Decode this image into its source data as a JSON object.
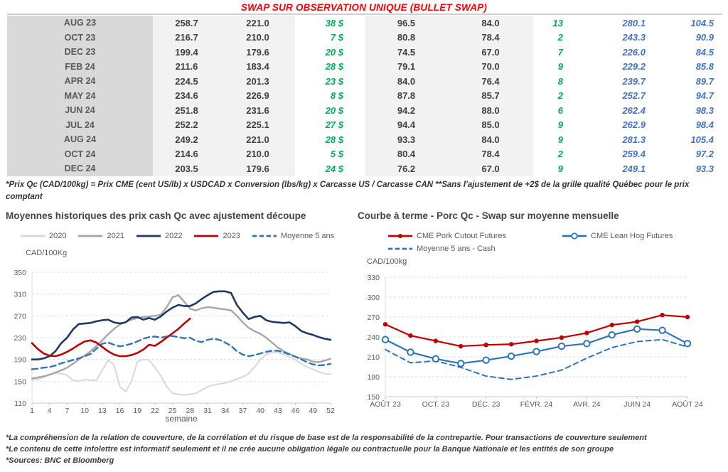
{
  "title": "SWAP SUR OBSERVATION UNIQUE (BULLET SWAP)",
  "table": {
    "rows": [
      [
        "AUG 23",
        "258.7",
        "221.0",
        "38 $",
        "96.5",
        "84.0",
        "13",
        "280.1",
        "104.5"
      ],
      [
        "OCT 23",
        "216.7",
        "210.0",
        "7 $",
        "80.8",
        "78.4",
        "2",
        "243.3",
        "90.9"
      ],
      [
        "DEC 23",
        "199.4",
        "179.6",
        "20 $",
        "74.5",
        "67.0",
        "7",
        "226.0",
        "84.5"
      ],
      [
        "FEB 24",
        "211.6",
        "183.4",
        "28 $",
        "79.1",
        "70.0",
        "9",
        "229.2",
        "85.8"
      ],
      [
        "APR 24",
        "224.5",
        "201.3",
        "23 $",
        "84.0",
        "76.4",
        "8",
        "239.7",
        "89.7"
      ],
      [
        "MAY 24",
        "234.6",
        "226.9",
        "8 $",
        "87.8",
        "85.7",
        "2",
        "252.7",
        "94.7"
      ],
      [
        "JUN 24",
        "251.8",
        "231.6",
        "20 $",
        "94.2",
        "88.0",
        "6",
        "262.4",
        "98.3"
      ],
      [
        "JUL 24",
        "252.2",
        "225.1",
        "27 $",
        "94.4",
        "85.0",
        "9",
        "262.9",
        "98.4"
      ],
      [
        "AUG 24",
        "249.2",
        "221.0",
        "28 $",
        "93.3",
        "84.0",
        "9",
        "281.3",
        "105.4"
      ],
      [
        "OCT 24",
        "214.6",
        "210.0",
        "5 $",
        "80.4",
        "78.4",
        "2",
        "259.4",
        "97.2"
      ],
      [
        "DEC 24",
        "203.5",
        "179.6",
        "24 $",
        "76.2",
        "67.0",
        "9",
        "249.1",
        "93.3"
      ]
    ]
  },
  "table_note": "*Prix Qc (CAD/100kg) = Prix CME (cent US/lb) x USDCAD x Conversion (lbs/kg) x Carcasse US / Carcasse CAN **Sans l'ajustement de +2$ de la grille qualité Québec pour le prix comptant",
  "colors": {
    "title_red": "#ff0000",
    "green": "#00b050",
    "blue_italic": "#4472c4",
    "navy": "#1f3864",
    "dark_red": "#c00000",
    "steel_blue": "#2e75b6",
    "gray_2021": "#a6a6a6",
    "light_gray_2020": "#d8d8d8"
  },
  "chart_data": [
    {
      "type": "line",
      "title": "Moyennes historiques des prix cash Qc avec ajustement découpe",
      "ylabel": "CAD/100Kg",
      "xlabel": "semaine",
      "ylim": [
        110,
        350
      ],
      "yticks": [
        110,
        150,
        190,
        230,
        270,
        310,
        350
      ],
      "xlim": [
        1,
        52
      ],
      "xticks": [
        {
          "v": 1,
          "label": "1"
        },
        {
          "v": 4,
          "label": "4"
        },
        {
          "v": 7,
          "label": "7"
        },
        {
          "v": 10,
          "label": "10"
        },
        {
          "v": 13,
          "label": "13"
        },
        {
          "v": 16,
          "label": "16"
        },
        {
          "v": 19,
          "label": "19"
        },
        {
          "v": 22,
          "label": "22"
        },
        {
          "v": 25,
          "label": "25"
        },
        {
          "v": 28,
          "label": "28"
        },
        {
          "v": 31,
          "label": "31"
        },
        {
          "v": 34,
          "label": "34"
        },
        {
          "v": 37,
          "label": "37"
        },
        {
          "v": 40,
          "label": "40"
        },
        {
          "v": 43,
          "label": "43"
        },
        {
          "v": 46,
          "label": "46"
        },
        {
          "v": 49,
          "label": "49"
        },
        {
          "v": 52,
          "label": "52"
        }
      ],
      "grid": true,
      "legend_position": "top",
      "series": [
        {
          "name": "2020",
          "color": "#d8d8d8",
          "width": 2,
          "x0": 1,
          "values": [
            152,
            154,
            157,
            162,
            165,
            164,
            161,
            152,
            150,
            153,
            152,
            152,
            170,
            189,
            180,
            140,
            131,
            150,
            186,
            190,
            189,
            175,
            160,
            140,
            128,
            126,
            125,
            126,
            128,
            134,
            140,
            143,
            145,
            147,
            150,
            154,
            158,
            164,
            176,
            190,
            199,
            203,
            203,
            199,
            194,
            189,
            182,
            176,
            172,
            167,
            164,
            163
          ]
        },
        {
          "name": "2021",
          "color": "#a6a6a6",
          "width": 2.4,
          "x0": 1,
          "values": [
            155,
            157,
            159,
            162,
            166,
            170,
            175,
            182,
            190,
            197,
            205,
            215,
            225,
            236,
            246,
            254,
            259,
            263,
            266,
            268,
            269,
            270,
            272,
            286,
            304,
            308,
            296,
            283,
            280,
            284,
            286,
            285,
            283,
            282,
            280,
            270,
            258,
            248,
            242,
            237,
            230,
            221,
            212,
            205,
            200,
            195,
            192,
            190,
            186,
            185,
            188,
            191
          ]
        },
        {
          "name": "2022",
          "color": "#1f3864",
          "width": 2.6,
          "x0": 1,
          "values": [
            190,
            190,
            192,
            196,
            205,
            220,
            230,
            245,
            255,
            256,
            257,
            260,
            262,
            263,
            258,
            256,
            258,
            267,
            268,
            263,
            266,
            263,
            269,
            278,
            285,
            290,
            288,
            288,
            293,
            301,
            308,
            314,
            315,
            315,
            312,
            290,
            276,
            264,
            268,
            270,
            262,
            259,
            258,
            257,
            258,
            251,
            242,
            238,
            235,
            231,
            228,
            226
          ]
        },
        {
          "name": "Moyenne 5 ans",
          "color": "#2e75b6",
          "width": 2.4,
          "dash": "8 5",
          "x0": 1,
          "values": [
            172,
            173,
            175,
            176,
            179,
            183,
            186,
            189,
            192,
            196,
            200,
            210,
            219,
            221,
            217,
            214,
            216,
            219,
            223,
            228,
            231,
            232,
            230,
            232,
            233,
            231,
            229,
            230,
            224,
            222,
            226,
            228,
            226,
            221,
            215,
            205,
            199,
            196,
            198,
            201,
            204,
            206,
            206,
            203,
            199,
            195,
            190,
            185,
            181,
            179,
            180,
            182
          ]
        },
        {
          "name": "2023",
          "color": "#c00000",
          "width": 2.6,
          "x0": 1,
          "values": [
            220,
            209,
            201,
            197,
            196,
            199,
            204,
            210,
            217,
            223,
            225,
            221,
            213,
            205,
            199,
            196,
            196,
            198,
            202,
            208,
            217,
            215,
            222,
            230,
            238,
            246,
            256,
            265
          ]
        }
      ],
      "legend": [
        {
          "row": 0,
          "label": "2020",
          "color": "#d8d8d8",
          "style": "solid"
        },
        {
          "row": 0,
          "label": "2021",
          "color": "#a6a6a6",
          "style": "solid"
        },
        {
          "row": 0,
          "label": "2022",
          "color": "#1f3864",
          "style": "solid"
        },
        {
          "row": 0,
          "label": "2023",
          "color": "#c00000",
          "style": "solid"
        },
        {
          "row": 0,
          "label": "Moyenne 5 ans",
          "color": "#2e75b6",
          "style": "dashed"
        }
      ]
    },
    {
      "type": "line",
      "title": "Courbe à terme - Porc Qc - Swap sur moyenne mensuelle",
      "ylabel": "CAD/100kg",
      "xlabel": "",
      "ylim": [
        150,
        330
      ],
      "yticks": [
        150,
        180,
        210,
        240,
        270,
        300,
        330
      ],
      "xlim": [
        0,
        12
      ],
      "xticks": [
        {
          "v": 0,
          "label": "AOÛT 23"
        },
        {
          "v": 2,
          "label": "OCT. 23"
        },
        {
          "v": 4,
          "label": "DÉC. 23"
        },
        {
          "v": 6,
          "label": "FÉVR. 24"
        },
        {
          "v": 8,
          "label": "AVR. 24"
        },
        {
          "v": 10,
          "label": "JUIN 24"
        },
        {
          "v": 12,
          "label": "AOÛT 24"
        }
      ],
      "grid": true,
      "legend_position": "top",
      "series": [
        {
          "name": "Moyenne 5 ans - Cash",
          "color": "#2e75b6",
          "width": 2,
          "dash": "7 5",
          "x0": 0,
          "values": [
            221,
            201,
            204,
            194,
            181,
            176,
            181,
            190,
            208,
            224,
            233,
            236,
            225
          ]
        },
        {
          "name": "CME Lean Hog Futures",
          "color": "#2e75b6",
          "width": 2.2,
          "marker": "open",
          "x0": 0,
          "values": [
            236,
            217,
            207,
            200,
            205,
            211,
            218,
            226,
            230,
            243,
            252,
            250,
            230
          ]
        },
        {
          "name": "CME Pork Cutout Futures",
          "color": "#c00000",
          "width": 2.2,
          "marker": "filled",
          "x0": 0,
          "values": [
            259,
            242,
            234,
            226,
            228,
            229,
            234,
            239,
            246,
            258,
            263,
            273,
            270
          ]
        }
      ],
      "legend": [
        {
          "row": 0,
          "label": "CME Pork Cutout Futures",
          "color": "#c00000",
          "style": "marker-filled"
        },
        {
          "row": 0,
          "label": "CME Lean Hog Futures",
          "color": "#2e75b6",
          "style": "marker-open"
        },
        {
          "row": 1,
          "label": "Moyenne 5 ans - Cash",
          "color": "#2e75b6",
          "style": "dashed"
        }
      ]
    }
  ],
  "footnotes": [
    "*La compréhension de la relation de couverture, de la corrélation et du risque de base est de la responsabilité de la contrepartie. Pour transactions de couverture seulement",
    "*Le contenu de cette infolettre est informatif seulement et il ne crée aucune obligation légale ou contractuelle pour la Banque Nationale et les entités de son groupe",
    "*Sources: BNC et Bloomberg"
  ]
}
